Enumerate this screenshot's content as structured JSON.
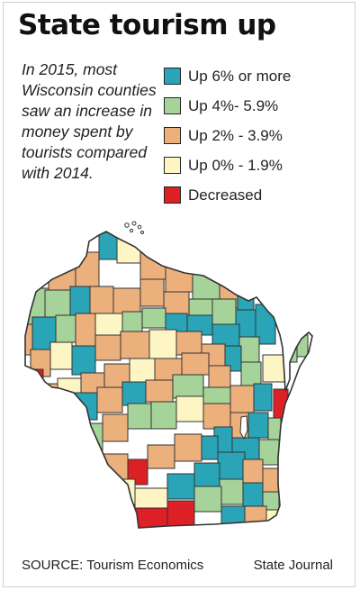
{
  "title": "State tourism up",
  "intro": "In 2015, most Wisconsin counties saw an increase in money spent by tourists compared with 2014.",
  "legend": [
    {
      "label": "Up 6% or more",
      "color": "#2aa5b8"
    },
    {
      "label": "Up 4%- 5.9%",
      "color": "#a6d39a"
    },
    {
      "label": "Up 2% - 3.9%",
      "color": "#ecb07c"
    },
    {
      "label": "Up 0% - 1.9%",
      "color": "#fdf6c4"
    },
    {
      "label": "Decreased",
      "color": "#dd1f26"
    }
  ],
  "source": "SOURCE: Tourism Economics",
  "credit": "State Journal",
  "map": {
    "outline_color": "#333333",
    "lake_color": "#ffffff"
  }
}
